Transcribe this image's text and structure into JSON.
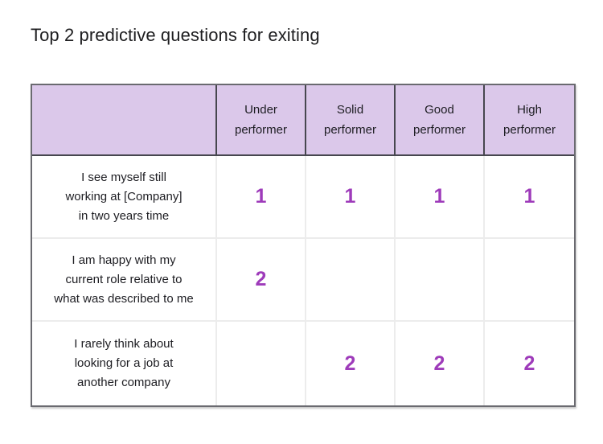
{
  "page": {
    "title": "Top 2 predictive questions for exiting"
  },
  "table": {
    "columns": [
      "Under\nperformer",
      "Solid\nperformer",
      "Good\nperformer",
      "High\nperformer"
    ],
    "rows": [
      {
        "question": "I see myself still\nworking at [Company]\nin two years time",
        "values": [
          "1",
          "1",
          "1",
          "1"
        ]
      },
      {
        "question": "I am happy with my\ncurrent role relative to\nwhat was described to me",
        "values": [
          "2",
          "",
          "",
          ""
        ]
      },
      {
        "question": "I rarely think about\nlooking for a job at\nanother company",
        "values": [
          "",
          "2",
          "2",
          "2"
        ]
      }
    ]
  },
  "colors": {
    "header_bg": "#dbc8ea",
    "rank_color": "#9e3bba",
    "header_border": "#47474f",
    "outer_border": "#6a6a70",
    "inner_border": "#ececec",
    "title_color": "#1e1e20",
    "cell_text": "#1d1d22"
  },
  "chart_data": {
    "type": "table",
    "title": "Top 2 predictive questions for exiting",
    "columns": [
      "Under performer",
      "Solid performer",
      "Good performer",
      "High performer"
    ],
    "rows": [
      {
        "label": "I see myself still working at [Company] in two years time",
        "values": [
          1,
          1,
          1,
          1
        ]
      },
      {
        "label": "I am happy with my current role relative to what was described to me",
        "values": [
          2,
          null,
          null,
          null
        ]
      },
      {
        "label": "I rarely think about looking for a job at another company",
        "values": [
          null,
          2,
          2,
          2
        ]
      }
    ],
    "legend_position": "none",
    "grid": true
  }
}
